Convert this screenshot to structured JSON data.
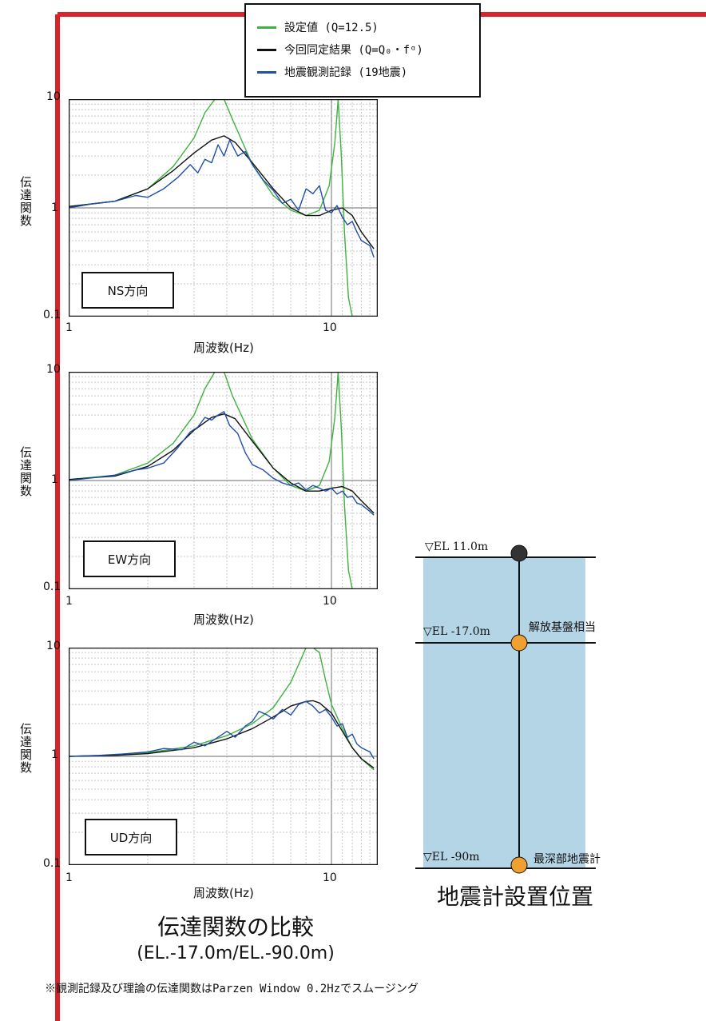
{
  "legend": [
    {
      "label": "設定値 (Q=12.5)",
      "color": "#3db33d"
    },
    {
      "label": "今回同定結果 (Q=Q₀・fᵅ)",
      "color": "#111111"
    },
    {
      "label": "地震観測記録 (19地震)",
      "color": "#1f4fa8"
    }
  ],
  "chart_data": [
    {
      "type": "line",
      "panel_label": "NS方向",
      "xlabel": "周波数(Hz)",
      "ylabel": "伝達関数",
      "x_scale": "log",
      "y_scale": "log",
      "xlim": [
        1,
        15
      ],
      "ylim": [
        0.1,
        10
      ],
      "x_ticks": [
        "1",
        "10"
      ],
      "y_ticks": [
        "0.1",
        "1",
        "10"
      ],
      "grid": true,
      "series": [
        {
          "name": "設定値 (Q=12.5)",
          "x": [
            1,
            1.5,
            2,
            2.5,
            3,
            3.3,
            3.6,
            3.9,
            4.2,
            5,
            6,
            7,
            8,
            9,
            9.8,
            10.3,
            10.6,
            10.9,
            11.2,
            11.6,
            12,
            13,
            14.5
          ],
          "y": [
            1.03,
            1.15,
            1.5,
            2.4,
            4.4,
            7.5,
            10,
            10,
            6.5,
            2.5,
            1.3,
            0.95,
            0.85,
            0.95,
            1.6,
            4,
            10,
            3,
            0.6,
            0.15,
            0.1,
            0.1,
            0.1
          ]
        },
        {
          "name": "今回同定結果 (Q=Q₀・fᵅ)",
          "x": [
            1,
            1.5,
            2,
            2.5,
            3,
            3.5,
            3.9,
            4.3,
            5,
            6,
            7,
            8,
            9,
            10,
            11,
            12,
            13,
            14.5
          ],
          "y": [
            1.03,
            1.15,
            1.5,
            2.2,
            3.2,
            4.2,
            4.6,
            4.0,
            2.6,
            1.5,
            1.0,
            0.85,
            0.85,
            0.95,
            1.0,
            0.85,
            0.6,
            0.42
          ]
        },
        {
          "name": "地震観測記録 (19地震)",
          "x": [
            1,
            1.2,
            1.5,
            1.8,
            2,
            2.3,
            2.6,
            2.9,
            3.1,
            3.3,
            3.5,
            3.7,
            3.9,
            4.1,
            4.4,
            4.7,
            5,
            5.5,
            6,
            6.5,
            7,
            7.5,
            8,
            8.5,
            9,
            9.5,
            10,
            10.5,
            11,
            11.5,
            12,
            12.5,
            13,
            14,
            14.5
          ],
          "y": [
            1.0,
            1.08,
            1.15,
            1.3,
            1.25,
            1.5,
            1.9,
            2.5,
            2.1,
            2.8,
            2.6,
            3.8,
            3.0,
            4.2,
            3.0,
            3.3,
            2.5,
            1.8,
            1.45,
            1.1,
            1.2,
            0.95,
            1.5,
            1.35,
            1.6,
            0.95,
            0.9,
            1.05,
            0.82,
            0.7,
            0.75,
            0.6,
            0.5,
            0.45,
            0.35
          ]
        }
      ]
    },
    {
      "type": "line",
      "panel_label": "EW方向",
      "xlabel": "周波数(Hz)",
      "ylabel": "伝達関数",
      "x_scale": "log",
      "y_scale": "log",
      "xlim": [
        1,
        15
      ],
      "ylim": [
        0.1,
        10
      ],
      "x_ticks": [
        "1",
        "10"
      ],
      "y_ticks": [
        "0.1",
        "1",
        "10"
      ],
      "grid": true,
      "series": [
        {
          "name": "設定値 (Q=12.5)",
          "x": [
            1,
            1.5,
            2,
            2.5,
            3,
            3.3,
            3.6,
            3.9,
            4.2,
            5,
            6,
            7,
            8,
            9,
            9.8,
            10.3,
            10.6,
            10.9,
            11.2,
            11.6,
            12,
            13,
            14.5
          ],
          "y": [
            1.02,
            1.12,
            1.45,
            2.2,
            4.0,
            7.0,
            10,
            10,
            6.0,
            2.4,
            1.3,
            0.9,
            0.8,
            0.9,
            1.5,
            3.8,
            10,
            3,
            0.6,
            0.15,
            0.1,
            0.1,
            0.1
          ]
        },
        {
          "name": "今回同定結果 (Q=Q₀・fᵅ)",
          "x": [
            1,
            1.5,
            2,
            2.5,
            3,
            3.5,
            3.9,
            4.3,
            5,
            6,
            7,
            8,
            9,
            10,
            11,
            12,
            13,
            14.5
          ],
          "y": [
            1.02,
            1.1,
            1.35,
            1.9,
            2.9,
            3.8,
            4.1,
            3.7,
            2.3,
            1.3,
            0.95,
            0.8,
            0.8,
            0.85,
            0.88,
            0.8,
            0.65,
            0.5
          ]
        },
        {
          "name": "地震観測記録 (19地震)",
          "x": [
            1,
            1.2,
            1.5,
            1.8,
            2,
            2.3,
            2.6,
            2.9,
            3.1,
            3.3,
            3.5,
            3.7,
            3.9,
            4.1,
            4.4,
            4.7,
            5,
            5.5,
            6,
            6.5,
            7,
            7.5,
            8,
            8.5,
            9,
            9.5,
            10,
            10.5,
            11,
            11.5,
            12,
            12.5,
            13,
            14,
            14.5
          ],
          "y": [
            1.0,
            1.05,
            1.12,
            1.25,
            1.3,
            1.45,
            2.0,
            2.8,
            3.1,
            3.8,
            3.6,
            4.0,
            4.3,
            3.2,
            2.7,
            1.8,
            1.4,
            1.25,
            1.05,
            0.95,
            0.9,
            0.95,
            0.82,
            0.9,
            0.85,
            0.8,
            0.85,
            0.75,
            0.8,
            0.7,
            0.72,
            0.62,
            0.6,
            0.52,
            0.48
          ]
        }
      ]
    },
    {
      "type": "line",
      "panel_label": "UD方向",
      "xlabel": "周波数(Hz)",
      "ylabel": "伝達関数",
      "x_scale": "log",
      "y_scale": "log",
      "xlim": [
        1,
        15
      ],
      "ylim": [
        0.1,
        10
      ],
      "x_ticks": [
        "1",
        "10"
      ],
      "y_ticks": [
        "0.1",
        "1",
        "10"
      ],
      "grid": true,
      "series": [
        {
          "name": "設定値 (Q=12.5)",
          "x": [
            1,
            1.5,
            2,
            3,
            4,
            5,
            6,
            7,
            7.5,
            8,
            8.5,
            9,
            9.5,
            10,
            11,
            12,
            13,
            14.5
          ],
          "y": [
            1.0,
            1.03,
            1.08,
            1.25,
            1.55,
            2.0,
            2.8,
            4.8,
            7,
            10,
            10,
            9,
            5,
            3,
            1.8,
            1.2,
            0.95,
            0.75
          ]
        },
        {
          "name": "今回同定結果 (Q=Q₀・fᵅ)",
          "x": [
            1,
            1.5,
            2,
            3,
            4,
            5,
            6,
            7,
            8,
            8.5,
            9,
            10,
            11,
            12,
            13,
            14.5
          ],
          "y": [
            1.0,
            1.02,
            1.06,
            1.2,
            1.45,
            1.8,
            2.3,
            2.9,
            3.2,
            3.25,
            3.1,
            2.5,
            1.7,
            1.2,
            0.95,
            0.78
          ]
        },
        {
          "name": "地震観測記録 (19地震)",
          "x": [
            1,
            1.3,
            1.6,
            2,
            2.3,
            2.7,
            3,
            3.3,
            3.7,
            4,
            4.3,
            4.7,
            5,
            5.3,
            5.7,
            6,
            6.5,
            7,
            7.5,
            8,
            8.5,
            9,
            9.5,
            10,
            10.5,
            11,
            11.5,
            12,
            12.5,
            13,
            14,
            14.5
          ],
          "y": [
            1.0,
            1.02,
            1.05,
            1.1,
            1.18,
            1.15,
            1.35,
            1.25,
            1.5,
            1.7,
            1.5,
            1.9,
            2.1,
            2.6,
            2.4,
            2.2,
            2.7,
            2.4,
            3.0,
            3.2,
            2.9,
            2.5,
            2.7,
            2.3,
            1.9,
            2.0,
            1.5,
            1.6,
            1.3,
            1.2,
            1.1,
            0.95
          ]
        }
      ]
    }
  ],
  "main_title": "伝達関数の比較",
  "main_subtitle": "(EL.-17.0m/EL.-90.0m)",
  "footnote": "※観測記録及び理論の伝達関数はParzen Window 0.2Hzでスムージング",
  "diagram": {
    "title": "地震計設置位置",
    "levels": [
      {
        "el": "▽EL 11.0m",
        "desc": "",
        "color": "#333333"
      },
      {
        "el": "▽EL -17.0m",
        "desc": "解放基盤相当",
        "color": "#f0a030"
      },
      {
        "el": "▽EL -90m",
        "desc": "最深部地震計",
        "color": "#f0a030"
      }
    ],
    "fill_color": "#b3d5e6"
  }
}
